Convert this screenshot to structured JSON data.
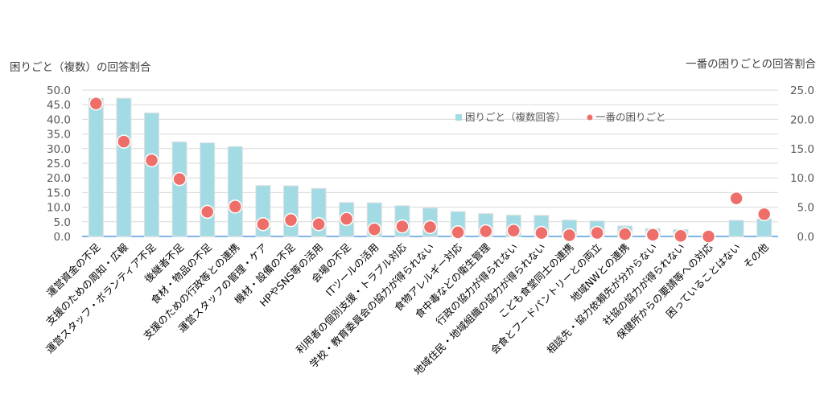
{
  "chart_data": {
    "type": "bar",
    "left_axis_title": "困りごと（複数）の回答割合",
    "right_axis_title": "一番の困りごとの回答割合",
    "categories": [
      "運営資金の不足",
      "支援のための周知・広報",
      "運営スタッフ・ボランティア不足",
      "後継者不足",
      "食材・物品の不足",
      "支援のための行政等との連携",
      "運営スタッフの管理・ケア",
      "機材・設備の不足",
      "HPやSNS等の活用",
      "会場の不足",
      "ITツールの活用",
      "利用者の個別支援・トラブル対応",
      "学校・教育委員会の協力が得られない",
      "食物アレルギー対応",
      "食中毒などの衛生管理",
      "行政の協力が得られない",
      "地域住民・地域組織の協力が得られない",
      "こども食堂同士の連携",
      "会食とフードパントリーとの両立",
      "地域NWとの連携",
      "相談先・協力依頼先が分からない",
      "社協の協力が得られない",
      "保健所からの要請等への対応",
      "困っていることはない",
      "その他"
    ],
    "series": [
      {
        "name": "困りごと（複数回答）",
        "type": "bar",
        "axis": "left",
        "color": "#a3dbe4",
        "values": [
          47.2,
          47.2,
          42.2,
          32.3,
          32.0,
          30.7,
          17.4,
          17.3,
          16.4,
          11.6,
          11.5,
          10.5,
          9.7,
          8.5,
          7.8,
          7.3,
          7.2,
          5.6,
          5.3,
          3.6,
          2.7,
          2.4,
          0.0,
          5.5,
          6.0
        ]
      },
      {
        "name": "一番の困りごと",
        "type": "scatter",
        "axis": "right",
        "color": "#ee6f69",
        "values": [
          22.7,
          16.2,
          13.0,
          9.8,
          4.2,
          5.1,
          2.1,
          2.8,
          2.1,
          3.0,
          1.2,
          1.7,
          1.6,
          0.7,
          0.9,
          1.0,
          0.6,
          0.2,
          0.6,
          0.4,
          0.3,
          0.1,
          0.0,
          6.5,
          3.8
        ]
      }
    ],
    "left_ylim": [
      0,
      50
    ],
    "right_ylim": [
      0,
      25
    ],
    "left_ticks": [
      "0.0",
      "5.0",
      "10.0",
      "15.0",
      "20.0",
      "25.0",
      "30.0",
      "35.0",
      "40.0",
      "45.0",
      "50.0"
    ],
    "right_ticks": [
      "0.0",
      "5.0",
      "10.0",
      "15.0",
      "20.0",
      "25.0"
    ],
    "grid": true,
    "legend_position": "top-center",
    "baseline_color": "#2e86d6"
  }
}
